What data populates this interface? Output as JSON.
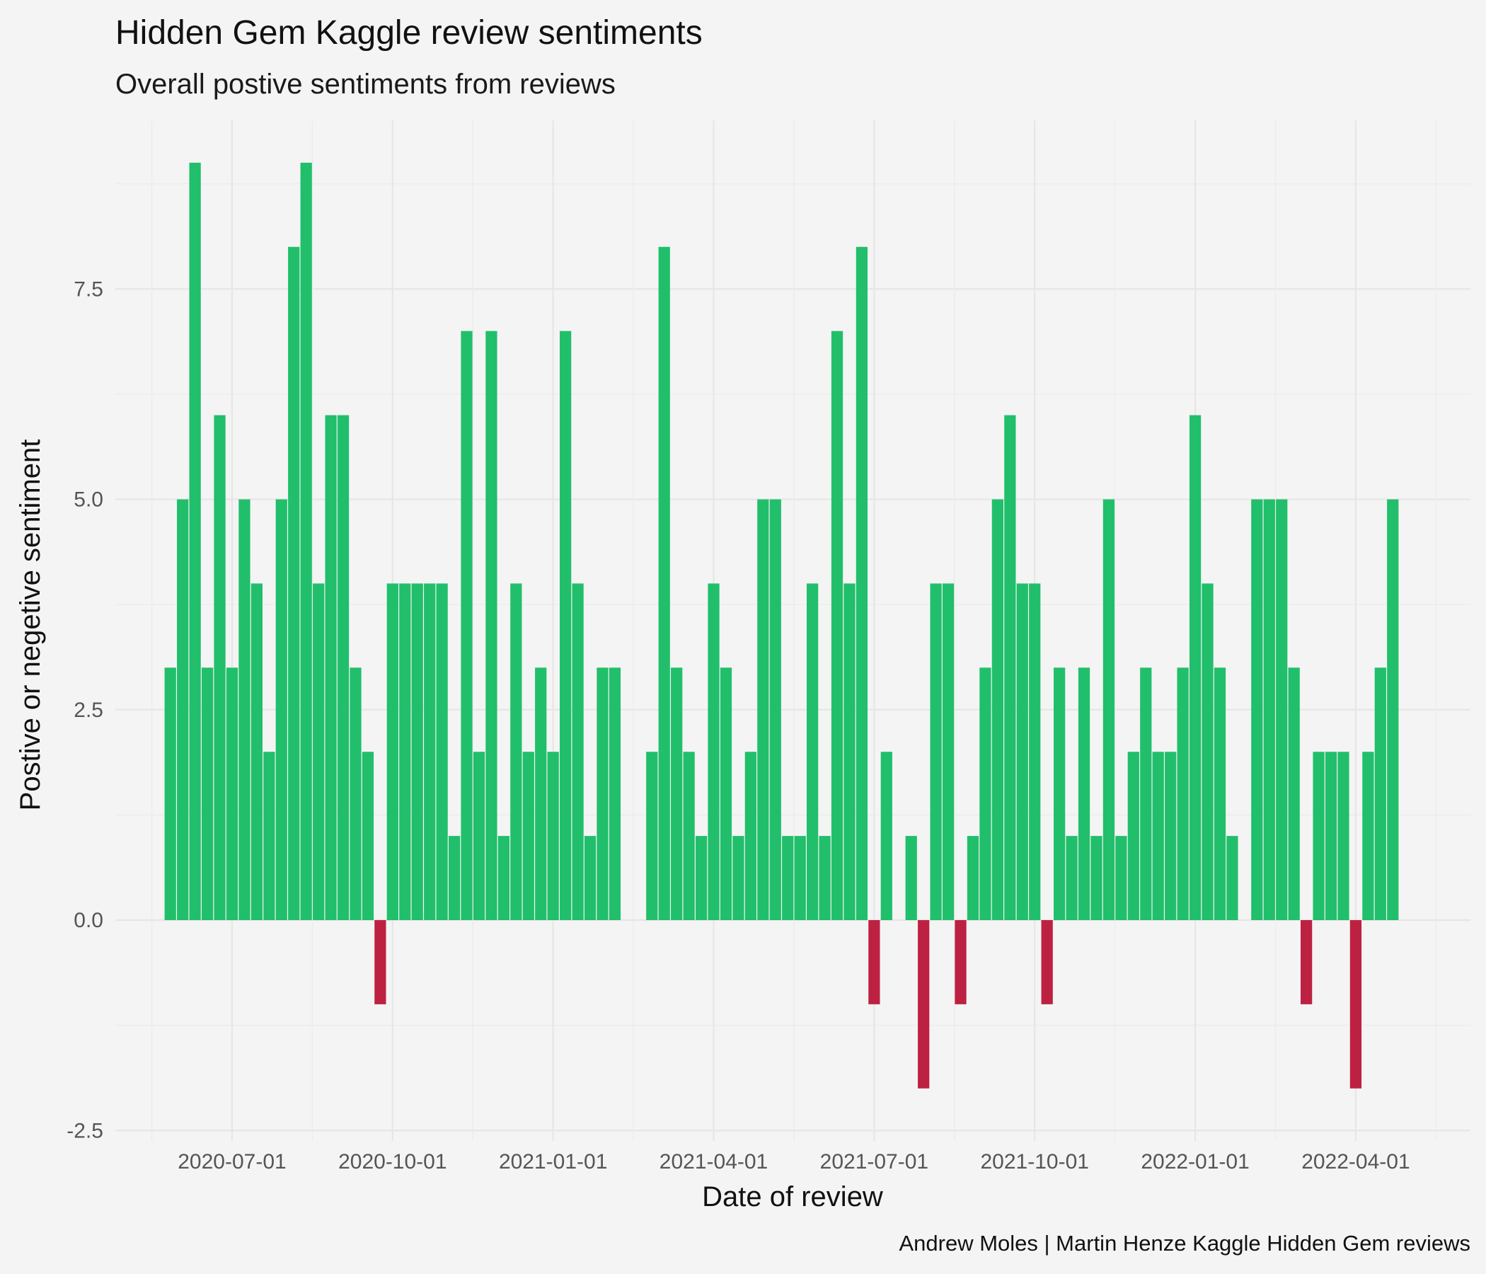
{
  "chart_data": {
    "type": "bar",
    "title": "Hidden Gem Kaggle review sentiments",
    "subtitle": "Overall postive sentiments from reviews",
    "xlabel": "Date of review",
    "ylabel": "Postive or negetive sentiment",
    "caption": "Andrew Moles | Martin Henze Kaggle Hidden Gem reviews",
    "ylim": [
      -2.5,
      9.5
    ],
    "y_ticks": [
      -2.5,
      0,
      2.5,
      5,
      7.5
    ],
    "y_tick_labels": [
      "-2.5",
      "0.0",
      "2.5",
      "5.0",
      "7.5"
    ],
    "x_tick_labels": [
      "2020-07-01",
      "2020-10-01",
      "2021-01-01",
      "2021-04-01",
      "2021-07-01",
      "2021-10-01",
      "2022-01-01",
      "2022-04-01"
    ],
    "x_tick_slots": [
      7.5,
      20.5,
      33.5,
      46.5,
      59.5,
      72.5,
      85.5,
      98.5
    ],
    "x_grid_minor_slots": [
      1,
      14,
      27,
      40,
      53,
      66,
      79,
      92,
      105
    ],
    "slot_count": 106,
    "positive_color": "#21bf6b",
    "negative_color": "#bd2141",
    "bars": [
      {
        "slot": 2,
        "value": 3
      },
      {
        "slot": 3,
        "value": 5
      },
      {
        "slot": 4,
        "value": 9
      },
      {
        "slot": 5,
        "value": 3
      },
      {
        "slot": 6,
        "value": 6
      },
      {
        "slot": 7,
        "value": 3
      },
      {
        "slot": 8,
        "value": 5
      },
      {
        "slot": 9,
        "value": 4
      },
      {
        "slot": 10,
        "value": 2
      },
      {
        "slot": 11,
        "value": 5
      },
      {
        "slot": 12,
        "value": 8
      },
      {
        "slot": 13,
        "value": 9
      },
      {
        "slot": 14,
        "value": 4
      },
      {
        "slot": 15,
        "value": 6
      },
      {
        "slot": 16,
        "value": 6
      },
      {
        "slot": 17,
        "value": 3
      },
      {
        "slot": 18,
        "value": 2
      },
      {
        "slot": 19,
        "value": -1
      },
      {
        "slot": 20,
        "value": 4
      },
      {
        "slot": 21,
        "value": 4
      },
      {
        "slot": 22,
        "value": 4
      },
      {
        "slot": 23,
        "value": 4
      },
      {
        "slot": 24,
        "value": 4
      },
      {
        "slot": 25,
        "value": 1
      },
      {
        "slot": 26,
        "value": 7
      },
      {
        "slot": 27,
        "value": 2
      },
      {
        "slot": 28,
        "value": 7
      },
      {
        "slot": 29,
        "value": 1
      },
      {
        "slot": 30,
        "value": 4
      },
      {
        "slot": 31,
        "value": 2
      },
      {
        "slot": 32,
        "value": 3
      },
      {
        "slot": 33,
        "value": 2
      },
      {
        "slot": 34,
        "value": 7
      },
      {
        "slot": 35,
        "value": 4
      },
      {
        "slot": 36,
        "value": 1
      },
      {
        "slot": 37,
        "value": 3
      },
      {
        "slot": 38,
        "value": 3
      },
      {
        "slot": 41,
        "value": 2
      },
      {
        "slot": 42,
        "value": 8
      },
      {
        "slot": 43,
        "value": 3
      },
      {
        "slot": 44,
        "value": 2
      },
      {
        "slot": 45,
        "value": 1
      },
      {
        "slot": 46,
        "value": 4
      },
      {
        "slot": 47,
        "value": 3
      },
      {
        "slot": 48,
        "value": 1
      },
      {
        "slot": 49,
        "value": 2
      },
      {
        "slot": 50,
        "value": 5
      },
      {
        "slot": 51,
        "value": 5
      },
      {
        "slot": 52,
        "value": 1
      },
      {
        "slot": 53,
        "value": 1
      },
      {
        "slot": 54,
        "value": 4
      },
      {
        "slot": 55,
        "value": 1
      },
      {
        "slot": 56,
        "value": 7
      },
      {
        "slot": 57,
        "value": 4
      },
      {
        "slot": 58,
        "value": 8
      },
      {
        "slot": 59,
        "value": -1
      },
      {
        "slot": 60,
        "value": 2
      },
      {
        "slot": 62,
        "value": 1
      },
      {
        "slot": 63,
        "value": -2
      },
      {
        "slot": 64,
        "value": 4
      },
      {
        "slot": 65,
        "value": 4
      },
      {
        "slot": 66,
        "value": -1
      },
      {
        "slot": 67,
        "value": 1
      },
      {
        "slot": 68,
        "value": 3
      },
      {
        "slot": 69,
        "value": 5
      },
      {
        "slot": 70,
        "value": 6
      },
      {
        "slot": 71,
        "value": 4
      },
      {
        "slot": 72,
        "value": 4
      },
      {
        "slot": 73,
        "value": -1
      },
      {
        "slot": 74,
        "value": 3
      },
      {
        "slot": 75,
        "value": 1
      },
      {
        "slot": 76,
        "value": 3
      },
      {
        "slot": 77,
        "value": 1
      },
      {
        "slot": 78,
        "value": 5
      },
      {
        "slot": 79,
        "value": 1
      },
      {
        "slot": 80,
        "value": 2
      },
      {
        "slot": 81,
        "value": 3
      },
      {
        "slot": 82,
        "value": 2
      },
      {
        "slot": 83,
        "value": 2
      },
      {
        "slot": 84,
        "value": 3
      },
      {
        "slot": 85,
        "value": 6
      },
      {
        "slot": 86,
        "value": 4
      },
      {
        "slot": 87,
        "value": 3
      },
      {
        "slot": 88,
        "value": 1
      },
      {
        "slot": 90,
        "value": 5
      },
      {
        "slot": 91,
        "value": 5
      },
      {
        "slot": 92,
        "value": 5
      },
      {
        "slot": 93,
        "value": 3
      },
      {
        "slot": 94,
        "value": -1
      },
      {
        "slot": 95,
        "value": 2
      },
      {
        "slot": 96,
        "value": 2
      },
      {
        "slot": 97,
        "value": 2
      },
      {
        "slot": 98,
        "value": -2
      },
      {
        "slot": 99,
        "value": 2
      },
      {
        "slot": 100,
        "value": 3
      },
      {
        "slot": 101,
        "value": 5
      }
    ]
  }
}
